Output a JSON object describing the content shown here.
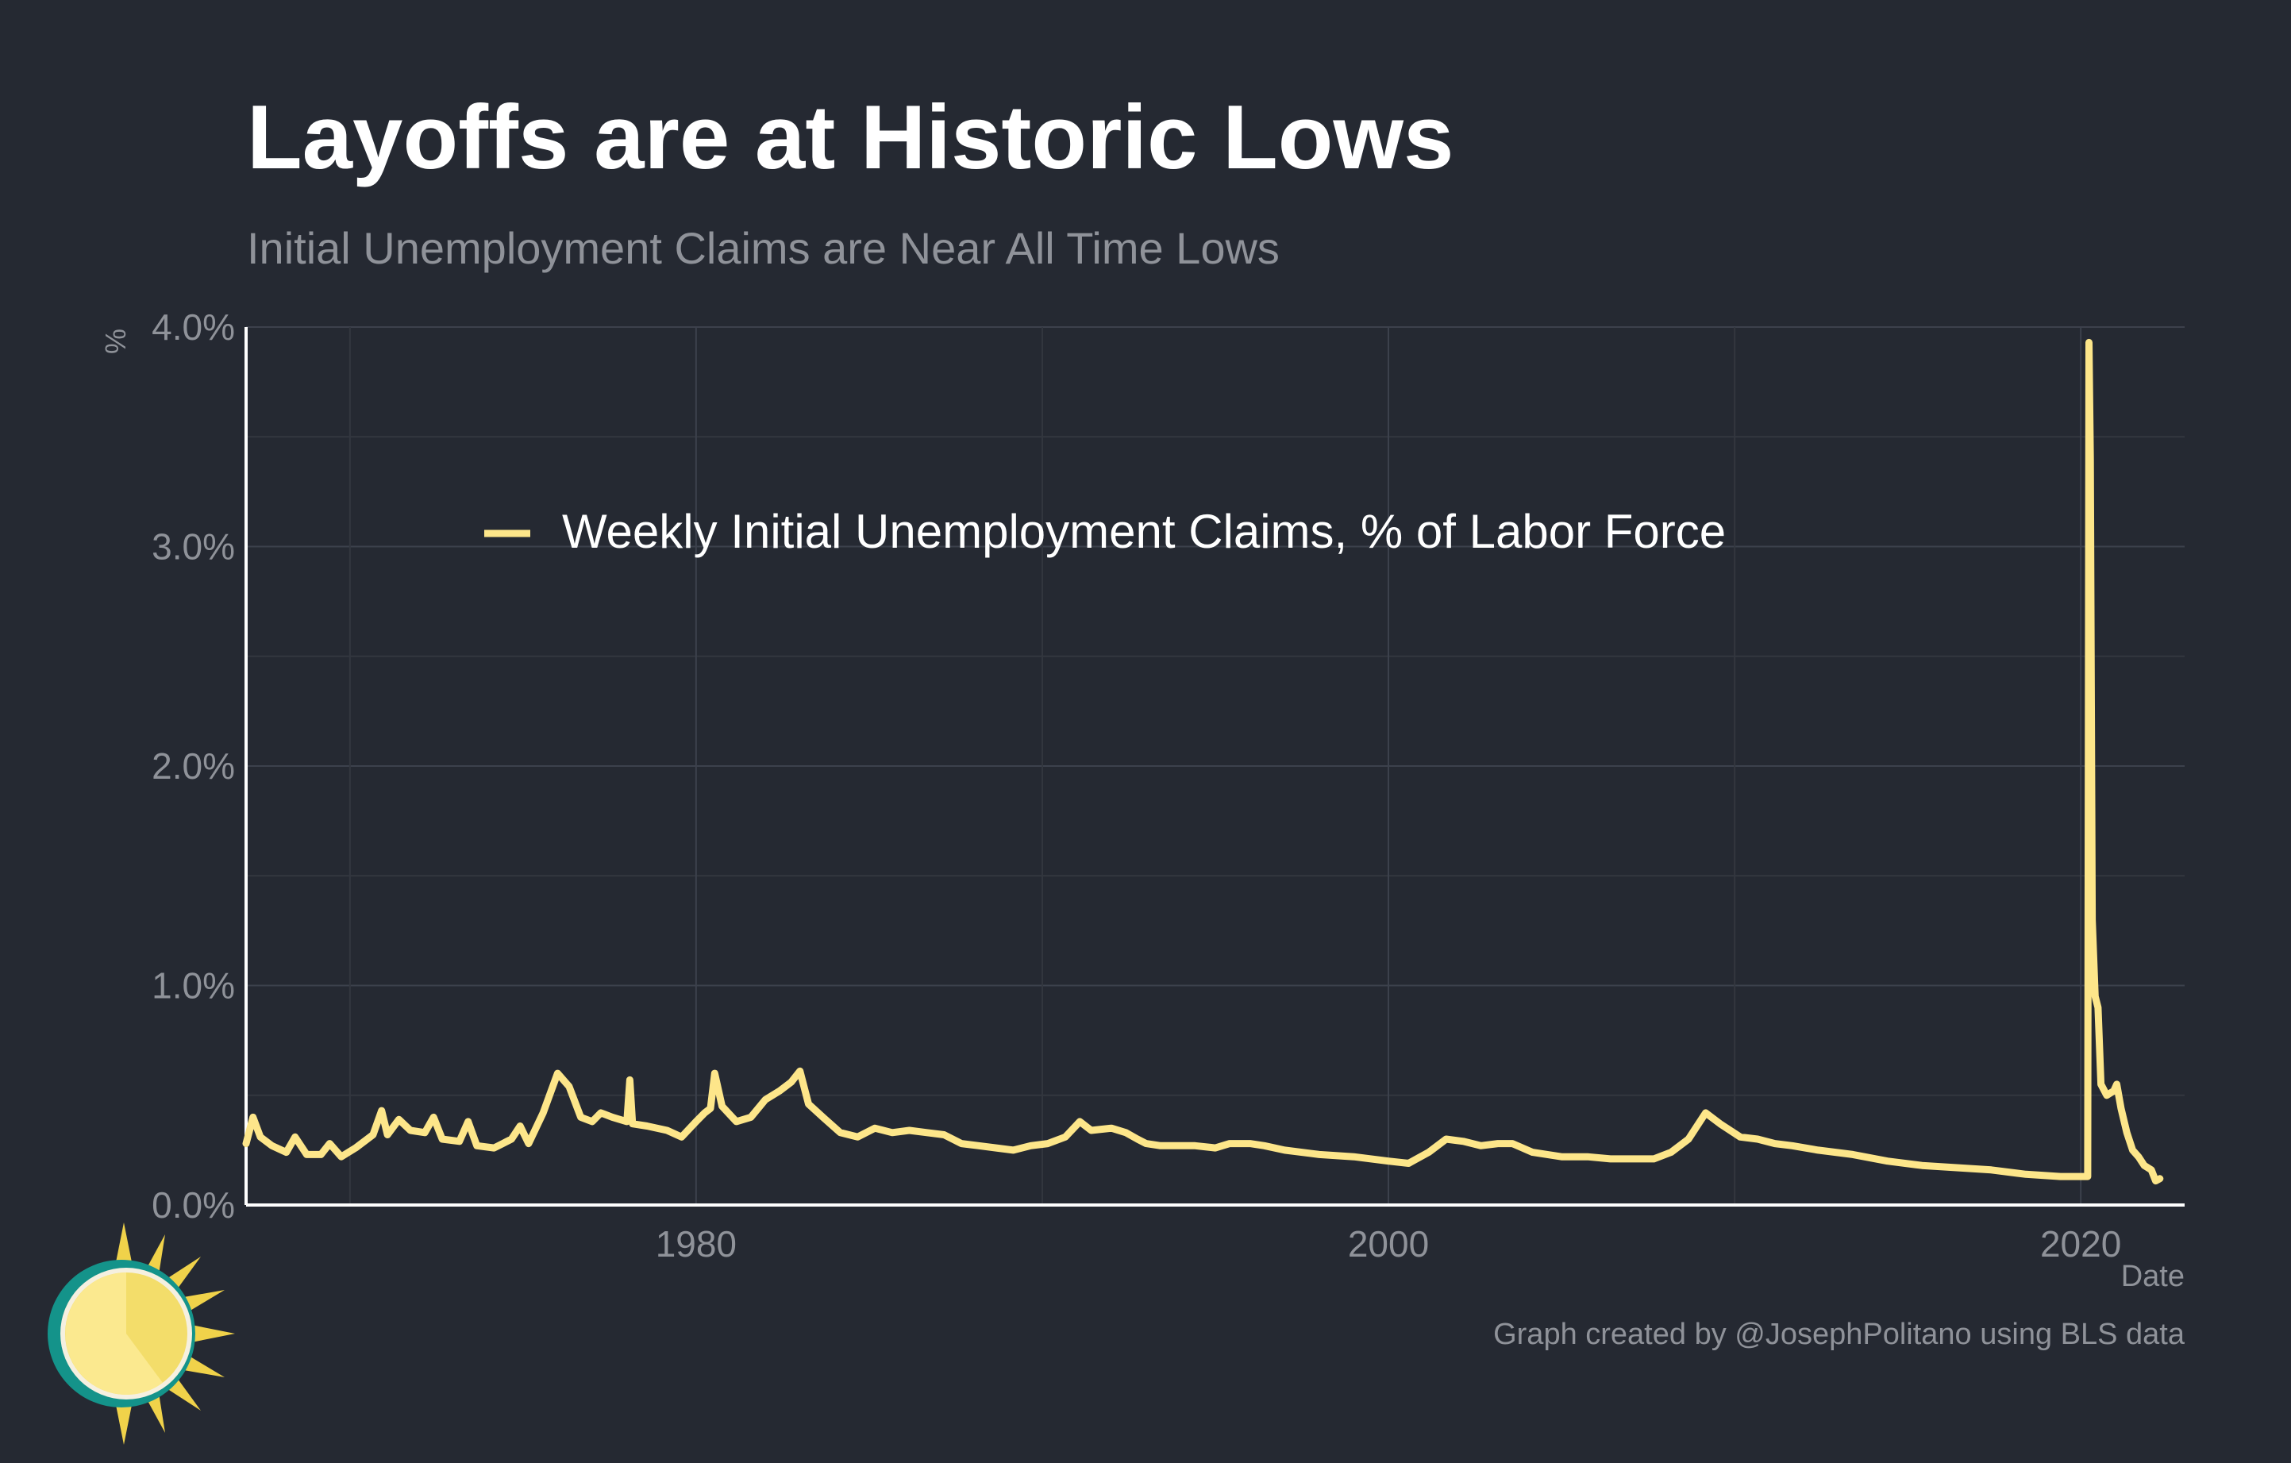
{
  "chart_data": {
    "type": "line",
    "title": "Layoffs are at Historic Lows",
    "subtitle": "Initial Unemployment Claims are Near All Time Lows",
    "xlabel": "Date",
    "ylabel": "%",
    "caption": "Graph created by @JosephPolitano using BLS data",
    "legend_position": "top-left inside",
    "grid": true,
    "xlim": [
      "1967-01-01",
      "2023-01-01"
    ],
    "ylim": [
      0,
      4.0
    ],
    "x_ticks": [
      "1980",
      "2000",
      "2020"
    ],
    "y_ticks": [
      "0.0%",
      "1.0%",
      "2.0%",
      "3.0%",
      "4.0%"
    ],
    "colors": {
      "background": "#252932",
      "series": "#fde68a",
      "grid": "#3c414c",
      "axis": "#ffffff",
      "muted_text": "#8f9299"
    },
    "series": [
      {
        "name": "Weekly Initial Unemployment Claims, % of Labor Force",
        "points": [
          [
            "1967-01-01",
            0.28
          ],
          [
            "1967-03-15",
            0.4
          ],
          [
            "1967-06-01",
            0.31
          ],
          [
            "1967-10-01",
            0.27
          ],
          [
            "1968-03-01",
            0.24
          ],
          [
            "1968-06-01",
            0.31
          ],
          [
            "1968-10-01",
            0.23
          ],
          [
            "1969-03-01",
            0.23
          ],
          [
            "1969-06-01",
            0.28
          ],
          [
            "1969-10-01",
            0.22
          ],
          [
            "1970-03-01",
            0.26
          ],
          [
            "1970-09-01",
            0.32
          ],
          [
            "1970-12-01",
            0.43
          ],
          [
            "1971-02-01",
            0.32
          ],
          [
            "1971-06-01",
            0.39
          ],
          [
            "1971-10-01",
            0.34
          ],
          [
            "1972-03-01",
            0.33
          ],
          [
            "1972-06-01",
            0.4
          ],
          [
            "1972-09-01",
            0.3
          ],
          [
            "1973-03-01",
            0.29
          ],
          [
            "1973-06-01",
            0.38
          ],
          [
            "1973-09-01",
            0.27
          ],
          [
            "1974-03-01",
            0.26
          ],
          [
            "1974-06-01",
            0.28
          ],
          [
            "1974-09-01",
            0.3
          ],
          [
            "1974-12-01",
            0.36
          ],
          [
            "1975-03-01",
            0.28
          ],
          [
            "1975-08-01",
            0.42
          ],
          [
            "1976-01-01",
            0.6
          ],
          [
            "1976-05-01",
            0.54
          ],
          [
            "1976-09-01",
            0.4
          ],
          [
            "1977-01-01",
            0.38
          ],
          [
            "1977-04-01",
            0.42
          ],
          [
            "1977-08-01",
            0.4
          ],
          [
            "1978-01-01",
            0.38
          ],
          [
            "1978-02-01",
            0.57
          ],
          [
            "1978-03-01",
            0.37
          ],
          [
            "1978-08-01",
            0.36
          ],
          [
            "1979-03-01",
            0.34
          ],
          [
            "1979-08-01",
            0.31
          ],
          [
            "1980-01-01",
            0.38
          ],
          [
            "1980-04-01",
            0.42
          ],
          [
            "1980-06-01",
            0.44
          ],
          [
            "1980-07-15",
            0.6
          ],
          [
            "1980-10-01",
            0.45
          ],
          [
            "1981-03-01",
            0.38
          ],
          [
            "1981-08-01",
            0.4
          ],
          [
            "1982-01-01",
            0.48
          ],
          [
            "1982-06-01",
            0.52
          ],
          [
            "1982-10-01",
            0.56
          ],
          [
            "1983-01-01",
            0.61
          ],
          [
            "1983-04-01",
            0.46
          ],
          [
            "1983-09-01",
            0.4
          ],
          [
            "1984-03-01",
            0.33
          ],
          [
            "1984-09-01",
            0.31
          ],
          [
            "1985-03-01",
            0.35
          ],
          [
            "1985-09-01",
            0.33
          ],
          [
            "1986-03-01",
            0.34
          ],
          [
            "1986-09-01",
            0.33
          ],
          [
            "1987-03-01",
            0.32
          ],
          [
            "1987-09-01",
            0.28
          ],
          [
            "1988-03-01",
            0.27
          ],
          [
            "1988-09-01",
            0.26
          ],
          [
            "1989-03-01",
            0.25
          ],
          [
            "1989-09-01",
            0.27
          ],
          [
            "1990-03-01",
            0.28
          ],
          [
            "1990-09-01",
            0.31
          ],
          [
            "1991-02-01",
            0.38
          ],
          [
            "1991-06-01",
            0.34
          ],
          [
            "1992-01-01",
            0.35
          ],
          [
            "1992-06-01",
            0.33
          ],
          [
            "1992-10-01",
            0.3
          ],
          [
            "1993-01-01",
            0.28
          ],
          [
            "1993-06-01",
            0.27
          ],
          [
            "1994-01-01",
            0.27
          ],
          [
            "1994-06-01",
            0.27
          ],
          [
            "1995-01-01",
            0.26
          ],
          [
            "1995-06-01",
            0.28
          ],
          [
            "1996-01-01",
            0.28
          ],
          [
            "1996-06-01",
            0.27
          ],
          [
            "1997-01-01",
            0.25
          ],
          [
            "1998-01-01",
            0.23
          ],
          [
            "1999-01-01",
            0.22
          ],
          [
            "2000-01-01",
            0.2
          ],
          [
            "2000-08-01",
            0.19
          ],
          [
            "2001-03-01",
            0.24
          ],
          [
            "2001-09-01",
            0.3
          ],
          [
            "2002-03-01",
            0.29
          ],
          [
            "2002-09-01",
            0.27
          ],
          [
            "2003-03-01",
            0.28
          ],
          [
            "2003-08-01",
            0.28
          ],
          [
            "2004-03-01",
            0.24
          ],
          [
            "2005-01-01",
            0.22
          ],
          [
            "2005-10-01",
            0.22
          ],
          [
            "2006-06-01",
            0.21
          ],
          [
            "2007-03-01",
            0.21
          ],
          [
            "2007-09-01",
            0.21
          ],
          [
            "2008-03-01",
            0.24
          ],
          [
            "2008-09-01",
            0.3
          ],
          [
            "2009-03-01",
            0.42
          ],
          [
            "2009-08-01",
            0.37
          ],
          [
            "2010-03-01",
            0.31
          ],
          [
            "2010-09-01",
            0.3
          ],
          [
            "2011-03-01",
            0.28
          ],
          [
            "2011-09-01",
            0.27
          ],
          [
            "2012-06-01",
            0.25
          ],
          [
            "2013-06-01",
            0.23
          ],
          [
            "2014-06-01",
            0.2
          ],
          [
            "2015-06-01",
            0.18
          ],
          [
            "2016-06-01",
            0.17
          ],
          [
            "2017-06-01",
            0.16
          ],
          [
            "2018-06-01",
            0.14
          ],
          [
            "2019-06-01",
            0.13
          ],
          [
            "2020-02-15",
            0.13
          ],
          [
            "2020-03-14",
            0.13
          ],
          [
            "2020-03-28",
            3.93
          ],
          [
            "2020-04-11",
            3.4
          ],
          [
            "2020-05-01",
            1.3
          ],
          [
            "2020-06-01",
            0.95
          ],
          [
            "2020-07-01",
            0.9
          ],
          [
            "2020-08-01",
            0.55
          ],
          [
            "2020-10-01",
            0.5
          ],
          [
            "2020-12-15",
            0.52
          ],
          [
            "2021-01-15",
            0.55
          ],
          [
            "2021-03-01",
            0.44
          ],
          [
            "2021-05-01",
            0.33
          ],
          [
            "2021-07-01",
            0.25
          ],
          [
            "2021-09-01",
            0.22
          ],
          [
            "2021-11-01",
            0.18
          ],
          [
            "2022-01-15",
            0.16
          ],
          [
            "2022-03-01",
            0.11
          ],
          [
            "2022-04-15",
            0.12
          ]
        ]
      }
    ]
  }
}
